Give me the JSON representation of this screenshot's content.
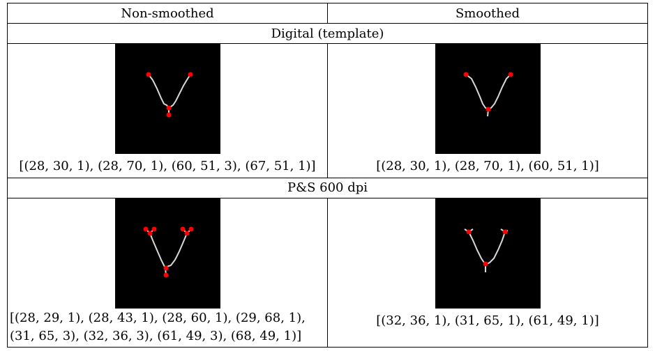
{
  "header": {
    "col_left": "Non-smoothed",
    "col_right": "Smoothed"
  },
  "sections": [
    {
      "title": "Digital (template)",
      "left_caption": "[(28, 30, 1), (28, 70, 1), (60, 51, 3), (67, 51, 1)]",
      "right_caption": "[(28, 30, 1), (28, 70, 1), (60, 51, 1)]"
    },
    {
      "title": "P&S 600 dpi",
      "left_caption_line1": "[(28, 29, 1), (28, 43, 1), (28, 60, 1), (29, 68, 1),",
      "left_caption_line2": "(31, 65, 3), (32, 36, 3), (61, 49, 3), (68, 49, 1)]",
      "right_caption": "[(32, 36, 1), (31, 65, 1), (61, 49, 1)]"
    }
  ],
  "colors": {
    "background": "#000000",
    "stroke": "#d8d8d8",
    "minutiae": "#ff0000"
  }
}
